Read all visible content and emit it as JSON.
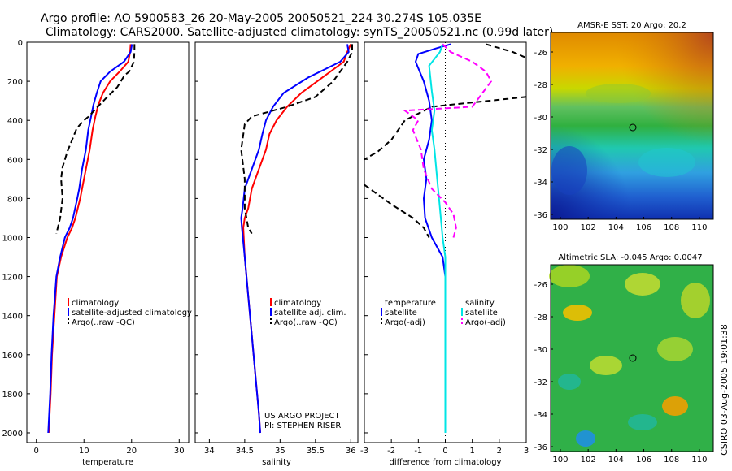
{
  "header": {
    "line1": "Argo profile: AO 5900583_26 20-May-2005 20050521_224 30.274S 105.035E",
    "line2": "Climatology: CARS2000. Satellite-adjusted climatology: synTS_20050521.nc (0.99d later)"
  },
  "side_label": "CSIRO 03-Aug-2005 19:01:38",
  "colors": {
    "red": "#ff0000",
    "blue": "#0000ff",
    "black": "#000000",
    "cyan": "#00e5e5",
    "magenta": "#ff00ff"
  },
  "chart_data": [
    {
      "type": "line",
      "xlabel": "temperature",
      "xlim": [
        -2,
        32
      ],
      "ylim": [
        0,
        2050
      ],
      "xticks": [
        0,
        10,
        20,
        30
      ],
      "yticks": [
        0,
        200,
        400,
        600,
        800,
        1000,
        1200,
        1400,
        1600,
        1800,
        2000
      ],
      "y_reversed": true,
      "legend": {
        "placement": "right",
        "entries": [
          "climatology",
          "satellite-adjusted climatology",
          "Argo(..raw -QC)"
        ]
      },
      "series": [
        {
          "name": "climatology",
          "color": "red",
          "style": "solid",
          "points": [
            [
              19.8,
              10
            ],
            [
              19.7,
              50
            ],
            [
              19.3,
              100
            ],
            [
              17.5,
              150
            ],
            [
              15.5,
              200
            ],
            [
              14,
              260
            ],
            [
              13,
              320
            ],
            [
              12.4,
              380
            ],
            [
              11.8,
              450
            ],
            [
              11.2,
              550
            ],
            [
              10.4,
              650
            ],
            [
              9.6,
              750
            ],
            [
              9.2,
              800
            ],
            [
              8.2,
              900
            ],
            [
              7.5,
              950
            ],
            [
              6.5,
              1000
            ],
            [
              5.2,
              1100
            ],
            [
              4.3,
              1200
            ],
            [
              3.8,
              1400
            ],
            [
              3.3,
              1600
            ],
            [
              3,
              1800
            ],
            [
              2.6,
              2000
            ]
          ]
        },
        {
          "name": "satellite-adjusted climatology",
          "color": "blue",
          "style": "solid",
          "points": [
            [
              20.1,
              10
            ],
            [
              19.8,
              50
            ],
            [
              18.4,
              100
            ],
            [
              15.5,
              150
            ],
            [
              13.5,
              200
            ],
            [
              12.7,
              260
            ],
            [
              12,
              320
            ],
            [
              11.5,
              380
            ],
            [
              10.9,
              450
            ],
            [
              10.4,
              550
            ],
            [
              9.6,
              650
            ],
            [
              9,
              750
            ],
            [
              8.6,
              800
            ],
            [
              7.7,
              900
            ],
            [
              7,
              950
            ],
            [
              6,
              1000
            ],
            [
              5,
              1100
            ],
            [
              4.2,
              1200
            ],
            [
              3.6,
              1400
            ],
            [
              3.2,
              1600
            ],
            [
              2.9,
              1800
            ],
            [
              2.5,
              2000
            ]
          ]
        },
        {
          "name": "Argo(..raw -QC)",
          "color": "black",
          "style": "dashed",
          "points": [
            [
              20.6,
              10
            ],
            [
              20.6,
              40
            ],
            [
              20.5,
              100
            ],
            [
              19.5,
              150
            ],
            [
              18.5,
              170
            ],
            [
              17,
              230
            ],
            [
              14.5,
              290
            ],
            [
              12.5,
              340
            ],
            [
              11,
              380
            ],
            [
              10,
              400
            ],
            [
              8.5,
              440
            ],
            [
              6.5,
              560
            ],
            [
              5.5,
              640
            ],
            [
              5.2,
              700
            ],
            [
              5.5,
              800
            ],
            [
              5,
              900
            ],
            [
              4.2,
              980
            ]
          ]
        }
      ]
    },
    {
      "type": "line",
      "xlabel": "salinity",
      "xlim": [
        33.8,
        36.1
      ],
      "ylim": [
        0,
        2050
      ],
      "xticks": [
        34,
        34.5,
        35,
        35.5,
        36
      ],
      "xticklabels": [
        "34",
        "34.5",
        "35",
        "35.5",
        "36"
      ],
      "y_reversed": true,
      "legend": {
        "placement": "right",
        "entries": [
          "climatology",
          "satellite adj. clim.",
          "Argo(..raw -QC)"
        ]
      },
      "annotation": [
        "US ARGO PROJECT",
        "PI: STEPHEN RISER"
      ],
      "series": [
        {
          "name": "climatology",
          "color": "red",
          "style": "solid",
          "points": [
            [
              36,
              10
            ],
            [
              35.95,
              50
            ],
            [
              35.9,
              100
            ],
            [
              35.6,
              180
            ],
            [
              35.3,
              260
            ],
            [
              35.1,
              330
            ],
            [
              34.95,
              400
            ],
            [
              34.85,
              470
            ],
            [
              34.8,
              550
            ],
            [
              34.7,
              650
            ],
            [
              34.6,
              750
            ],
            [
              34.55,
              850
            ],
            [
              34.5,
              900
            ],
            [
              34.48,
              950
            ],
            [
              34.5,
              1100
            ],
            [
              34.55,
              1300
            ],
            [
              34.6,
              1500
            ],
            [
              34.65,
              1700
            ],
            [
              34.7,
              1900
            ],
            [
              34.72,
              2000
            ]
          ]
        },
        {
          "name": "satellite adj. clim.",
          "color": "blue",
          "style": "solid",
          "points": [
            [
              35.95,
              10
            ],
            [
              35.97,
              50
            ],
            [
              35.85,
              100
            ],
            [
              35.4,
              180
            ],
            [
              35.05,
              260
            ],
            [
              34.9,
              330
            ],
            [
              34.8,
              400
            ],
            [
              34.75,
              470
            ],
            [
              34.7,
              550
            ],
            [
              34.6,
              650
            ],
            [
              34.5,
              750
            ],
            [
              34.47,
              850
            ],
            [
              34.45,
              900
            ],
            [
              34.46,
              950
            ],
            [
              34.5,
              1100
            ],
            [
              34.55,
              1300
            ],
            [
              34.6,
              1500
            ],
            [
              34.65,
              1700
            ],
            [
              34.7,
              1900
            ],
            [
              34.72,
              2000
            ]
          ]
        },
        {
          "name": "Argo(..raw -QC)",
          "color": "black",
          "style": "dashed",
          "points": [
            [
              36.02,
              10
            ],
            [
              36.02,
              50
            ],
            [
              35.95,
              100
            ],
            [
              35.85,
              150
            ],
            [
              35.75,
              200
            ],
            [
              35.5,
              280
            ],
            [
              35.1,
              330
            ],
            [
              34.9,
              350
            ],
            [
              34.6,
              380
            ],
            [
              34.5,
              420
            ],
            [
              34.45,
              550
            ],
            [
              34.5,
              700
            ],
            [
              34.5,
              850
            ],
            [
              34.55,
              950
            ],
            [
              34.6,
              980
            ]
          ]
        }
      ]
    },
    {
      "type": "line",
      "xlabel": "difference from climatology",
      "xlim": [
        -3,
        3
      ],
      "ylim": [
        0,
        2050
      ],
      "xticks": [
        -3,
        -2,
        -1,
        0,
        1,
        2,
        3
      ],
      "y_reversed": true,
      "legend": {
        "placement": "bottom",
        "entries": [
          "temperature",
          "satellite",
          "Argo(-adj)",
          "salinity",
          "satellite",
          "Argo(-adj)"
        ]
      },
      "series": [
        {
          "name": "satellite",
          "color": "blue",
          "style": "solid",
          "points": [
            [
              0.2,
              10
            ],
            [
              -0.3,
              30
            ],
            [
              -1,
              60
            ],
            [
              -1.1,
              100
            ],
            [
              -0.8,
              200
            ],
            [
              -0.6,
              300
            ],
            [
              -0.5,
              400
            ],
            [
              -0.6,
              500
            ],
            [
              -0.8,
              600
            ],
            [
              -0.7,
              700
            ],
            [
              -0.8,
              800
            ],
            [
              -0.75,
              900
            ],
            [
              -0.5,
              1000
            ],
            [
              -0.1,
              1100
            ],
            [
              0,
              1200
            ],
            [
              0,
              1900
            ]
          ]
        },
        {
          "name": "Argo(-adj)",
          "color": "black",
          "style": "dashed",
          "points": [
            [
              1.5,
              10
            ],
            [
              2.5,
              50
            ],
            [
              3,
              80
            ]
          ]
        },
        {
          "name": "Argo(-adj) lower",
          "color": "black",
          "style": "dashed",
          "points": [
            [
              3,
              280
            ],
            [
              -0.5,
              330
            ],
            [
              -1.5,
              400
            ],
            [
              -2,
              500
            ],
            [
              -2.5,
              560
            ],
            [
              -3,
              600
            ]
          ]
        },
        {
          "name": "Argo(-adj) deep",
          "color": "black",
          "style": "dashed",
          "points": [
            [
              -3,
              730
            ],
            [
              -2,
              830
            ],
            [
              -1.2,
              900
            ],
            [
              -0.8,
              950
            ],
            [
              -0.6,
              1000
            ]
          ]
        },
        {
          "name": "satellite",
          "color": "cyan",
          "style": "solid",
          "points": [
            [
              -0.1,
              10
            ],
            [
              -0.2,
              50
            ],
            [
              -0.6,
              120
            ],
            [
              -0.5,
              250
            ],
            [
              -0.4,
              350
            ],
            [
              -0.5,
              450
            ],
            [
              -0.4,
              550
            ],
            [
              -0.3,
              700
            ],
            [
              -0.2,
              850
            ],
            [
              -0.1,
              1000
            ],
            [
              0,
              1100
            ],
            [
              0,
              1300
            ],
            [
              0,
              2000
            ]
          ]
        },
        {
          "name": "Argo(-adj)",
          "color": "magenta",
          "style": "dashed",
          "points": [
            [
              -0.1,
              10
            ],
            [
              0.2,
              50
            ],
            [
              1,
              100
            ],
            [
              1.5,
              150
            ],
            [
              1.7,
              200
            ],
            [
              1,
              330
            ],
            [
              -1.5,
              350
            ],
            [
              -1,
              400
            ],
            [
              -1.2,
              450
            ],
            [
              -0.9,
              550
            ],
            [
              -0.8,
              650
            ],
            [
              -0.5,
              750
            ],
            [
              0,
              820
            ],
            [
              0.3,
              880
            ],
            [
              0.4,
              950
            ],
            [
              0.3,
              1000
            ]
          ]
        }
      ]
    }
  ],
  "maps": [
    {
      "title": "AMSR-E SST: 20 Argo: 20.2",
      "xticks": [
        "100",
        "102",
        "104",
        "106",
        "108",
        "110"
      ],
      "yticks": [
        "-26",
        "-28",
        "-30",
        "-32",
        "-34",
        "-36"
      ],
      "marker": {
        "lon": 105.035,
        "lat": -30.274
      }
    },
    {
      "title": "Altimetric SLA: -0.045 Argo: 0.0047",
      "xticks": [
        "100",
        "102",
        "104",
        "106",
        "108",
        "110"
      ],
      "yticks": [
        "-26",
        "-28",
        "-30",
        "-32",
        "-34",
        "-36"
      ],
      "marker": {
        "lon": 105.035,
        "lat": -30.274
      }
    }
  ]
}
